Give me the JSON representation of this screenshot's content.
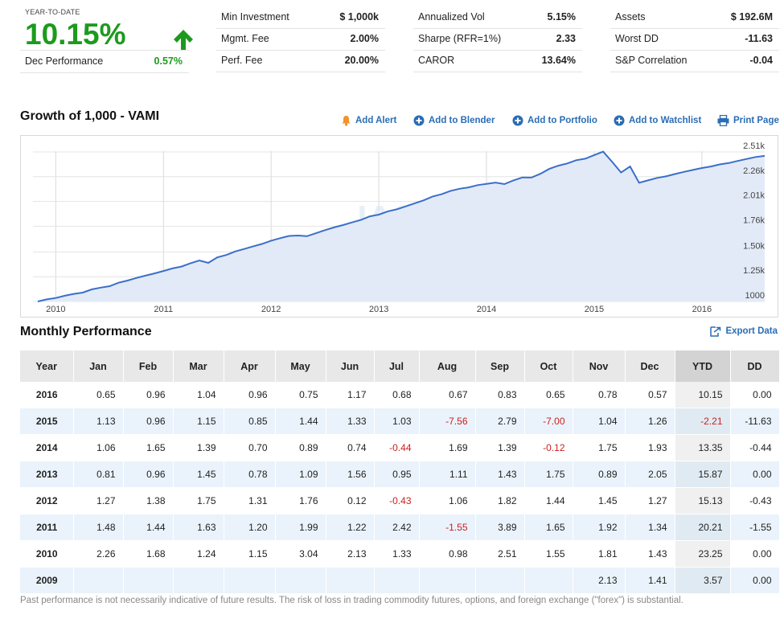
{
  "ytd_panel": {
    "label": "YEAR-TO-DATE",
    "value": "10.15%",
    "dec_label": "Dec Performance",
    "dec_value": "0.57%"
  },
  "stats": {
    "col1": [
      {
        "label": "Min Investment",
        "value": "$ 1,000k"
      },
      {
        "label": "Mgmt. Fee",
        "value": "2.00%"
      },
      {
        "label": "Perf. Fee",
        "value": "20.00%"
      }
    ],
    "col2": [
      {
        "label": "Annualized Vol",
        "value": "5.15%"
      },
      {
        "label": "Sharpe (RFR=1%)",
        "value": "2.33"
      },
      {
        "label": "CAROR",
        "value": "13.64%"
      }
    ],
    "col3": [
      {
        "label": "Assets",
        "value": "$ 192.6M"
      },
      {
        "label": "Worst DD",
        "value": "-11.63"
      },
      {
        "label": "S&P Correlation",
        "value": "-0.04"
      }
    ]
  },
  "chart_section": {
    "title": "Growth of 1,000 - VAMI",
    "actions": {
      "alert": "Add Alert",
      "blender": "Add to Blender",
      "portfolio": "Add to Portfolio",
      "watchlist": "Add to Watchlist",
      "print": "Print Page"
    },
    "watermark": "IASG"
  },
  "chart_data": {
    "type": "area",
    "title": "Growth of 1,000 - VAMI",
    "x_ticks": [
      "2010",
      "2011",
      "2012",
      "2013",
      "2014",
      "2015",
      "2016"
    ],
    "y_ticks": [
      "1000",
      "1.25k",
      "1.50k",
      "1.76k",
      "2.01k",
      "2.26k",
      "2.51k"
    ],
    "y_tick_values": [
      1000,
      1250,
      1500,
      1760,
      2010,
      2260,
      2510
    ],
    "start": {
      "year": 2009,
      "month": 11
    },
    "colors": {
      "line": "#3a6fc9",
      "fill": "#e3eaf7"
    },
    "series": [
      {
        "values": [
          1000,
          1021,
          1035,
          1058,
          1076,
          1089,
          1122,
          1140,
          1154,
          1189,
          1211,
          1238,
          1261,
          1283,
          1308,
          1334,
          1352,
          1385,
          1414,
          1390,
          1445,
          1469,
          1505,
          1530,
          1557,
          1581,
          1614,
          1639,
          1662,
          1666,
          1659,
          1689,
          1720,
          1748,
          1771,
          1798,
          1823,
          1860,
          1877,
          1910,
          1930,
          1960,
          1991,
          2021,
          2060,
          2083,
          2117,
          2138,
          2152,
          2175,
          2187,
          2201,
          2185,
          2223,
          2253,
          2251,
          2289,
          2339,
          2371,
          2394,
          2426,
          2442,
          2478,
          2513,
          2409,
          2302,
          2363,
          2199,
          2223,
          2248,
          2263,
          2287,
          2309,
          2328,
          2348,
          2363,
          2384,
          2398,
          2419,
          2439,
          2459,
          2470
        ]
      }
    ]
  },
  "perf_section": {
    "title": "Monthly Performance",
    "export": "Export Data",
    "columns": [
      "Year",
      "Jan",
      "Feb",
      "Mar",
      "Apr",
      "May",
      "Jun",
      "Jul",
      "Aug",
      "Sep",
      "Oct",
      "Nov",
      "Dec",
      "YTD",
      "DD"
    ],
    "rows": [
      [
        "2016",
        "0.65",
        "0.96",
        "1.04",
        "0.96",
        "0.75",
        "1.17",
        "0.68",
        "0.67",
        "0.83",
        "0.65",
        "0.78",
        "0.57",
        "10.15",
        "0.00"
      ],
      [
        "2015",
        "1.13",
        "0.96",
        "1.15",
        "0.85",
        "1.44",
        "1.33",
        "1.03",
        "-7.56",
        "2.79",
        "-7.00",
        "1.04",
        "1.26",
        "-2.21",
        "-11.63"
      ],
      [
        "2014",
        "1.06",
        "1.65",
        "1.39",
        "0.70",
        "0.89",
        "0.74",
        "-0.44",
        "1.69",
        "1.39",
        "-0.12",
        "1.75",
        "1.93",
        "13.35",
        "-0.44"
      ],
      [
        "2013",
        "0.81",
        "0.96",
        "1.45",
        "0.78",
        "1.09",
        "1.56",
        "0.95",
        "1.11",
        "1.43",
        "1.75",
        "0.89",
        "2.05",
        "15.87",
        "0.00"
      ],
      [
        "2012",
        "1.27",
        "1.38",
        "1.75",
        "1.31",
        "1.76",
        "0.12",
        "-0.43",
        "1.06",
        "1.82",
        "1.44",
        "1.45",
        "1.27",
        "15.13",
        "-0.43"
      ],
      [
        "2011",
        "1.48",
        "1.44",
        "1.63",
        "1.20",
        "1.99",
        "1.22",
        "2.42",
        "-1.55",
        "3.89",
        "1.65",
        "1.92",
        "1.34",
        "20.21",
        "-1.55"
      ],
      [
        "2010",
        "2.26",
        "1.68",
        "1.24",
        "1.15",
        "3.04",
        "2.13",
        "1.33",
        "0.98",
        "2.51",
        "1.55",
        "1.81",
        "1.43",
        "23.25",
        "0.00"
      ],
      [
        "2009",
        "",
        "",
        "",
        "",
        "",
        "",
        "",
        "",
        "",
        "",
        "2.13",
        "1.41",
        "3.57",
        "0.00"
      ]
    ]
  },
  "disclaimer": "Past performance is not necessarily indicative of future results. The risk of loss in trading commodity futures, options, and foreign exchange (\"forex\") is substantial."
}
